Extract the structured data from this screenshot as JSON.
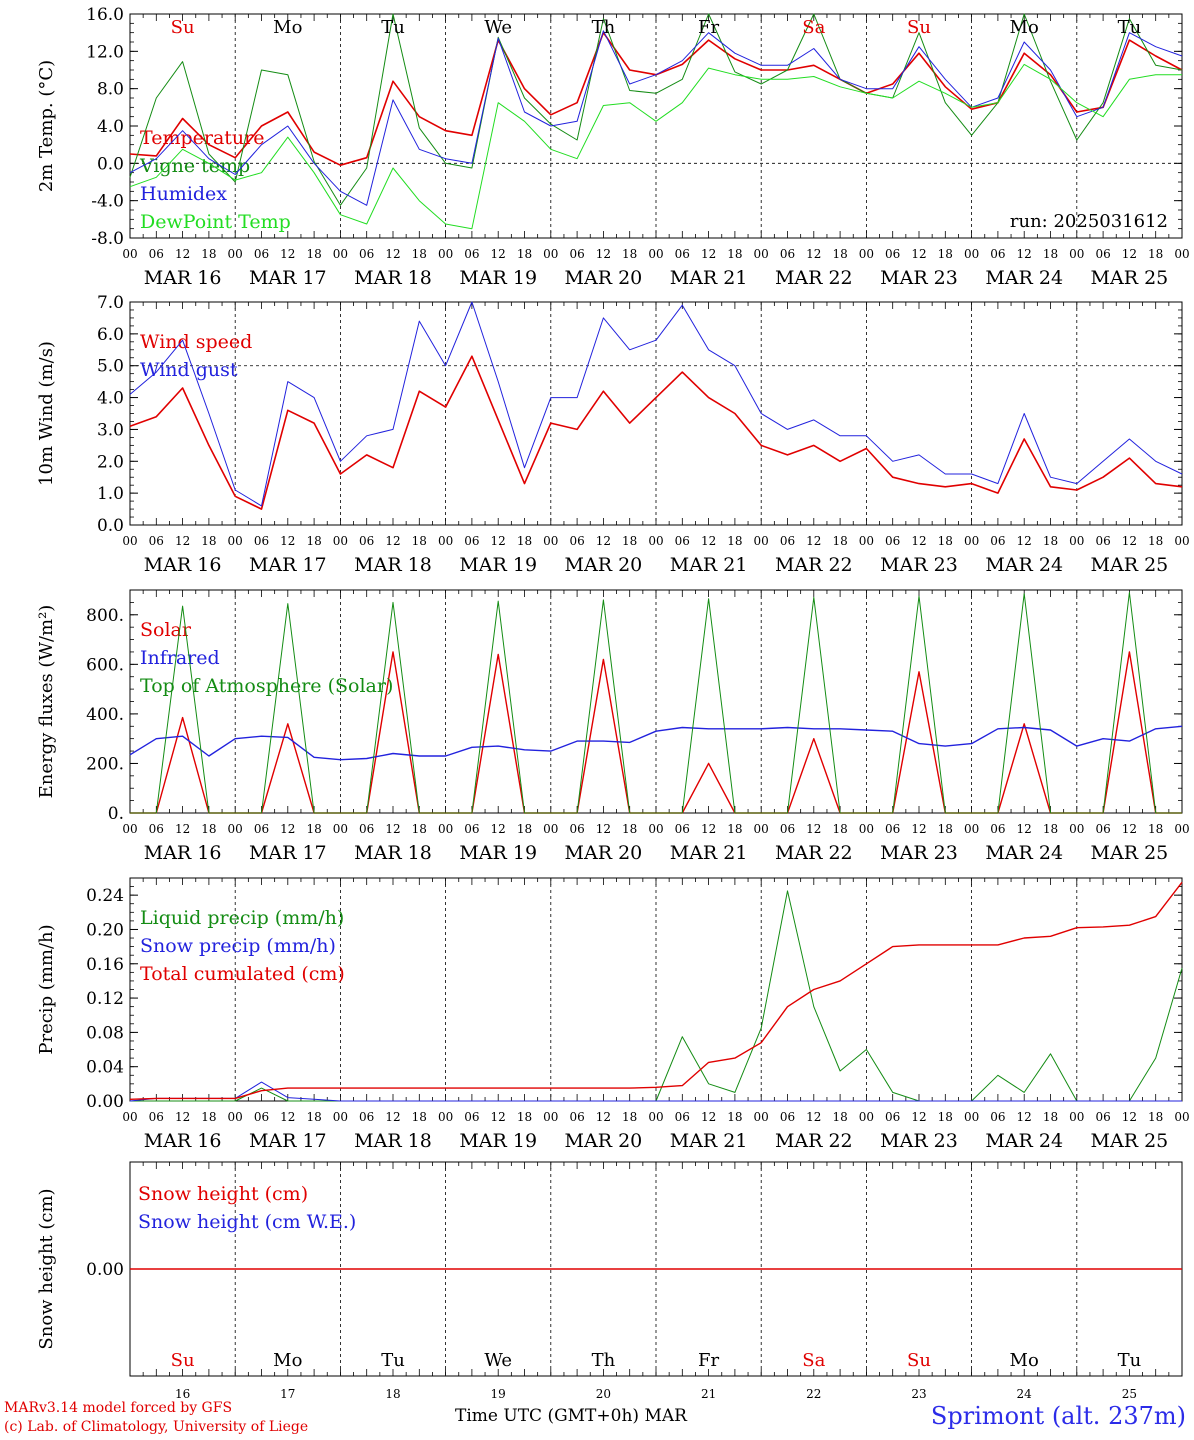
{
  "days": [
    "Su",
    "Mo",
    "Tu",
    "We",
    "Th",
    "Fr",
    "Sa",
    "Su",
    "Mo",
    "Tu"
  ],
  "dayColors": [
    "#e00000",
    "#000000",
    "#000000",
    "#000000",
    "#000000",
    "#000000",
    "#e00000",
    "#e00000",
    "#000000",
    "#000000"
  ],
  "dates": [
    "MAR 16",
    "MAR 17",
    "MAR 18",
    "MAR 19",
    "MAR 20",
    "MAR 21",
    "MAR 22",
    "MAR 23",
    "MAR 24",
    "MAR 25"
  ],
  "dayNumbers": [
    "16",
    "17",
    "18",
    "19",
    "20",
    "21",
    "22",
    "23",
    "24",
    "25"
  ],
  "hourTicks": [
    "00",
    "06",
    "12",
    "18"
  ],
  "lastTick": "00",
  "run_label": "run: 2025031612",
  "footer": {
    "model": "MARv3.14 model forced by GFS",
    "lab": "(c) Lab. of Climatology, University of Liege",
    "xlabel": "Time UTC (GMT+0h)",
    "month": "MAR",
    "station": "Sprimont (alt. 237m)"
  },
  "colors": {
    "red": "#e00000",
    "blue": "#2222dd",
    "green": "#148c14",
    "lightgreen": "#22dd22"
  },
  "chart_data": [
    {
      "type": "line",
      "ylabel": "2m Temp. (°C)",
      "ylim": [
        -8,
        16
      ],
      "yticks": [
        "16.0",
        "12.0",
        "8.0",
        "4.0",
        "0.0",
        "-4.0",
        "-8.0"
      ],
      "ytick_values": [
        16,
        12,
        8,
        4,
        0,
        -4,
        -8
      ],
      "dashed_y": [
        0
      ],
      "x_hours": [
        0,
        6,
        12,
        18,
        24,
        30,
        36,
        42,
        48,
        54,
        60,
        66,
        72,
        78,
        84,
        90,
        96,
        102,
        108,
        114,
        120,
        126,
        132,
        138,
        144,
        150,
        156,
        162,
        168,
        174,
        180,
        186,
        192,
        198,
        204,
        210,
        216,
        222,
        228,
        234,
        240
      ],
      "series": [
        {
          "name": "Temperature",
          "color": "#e00000",
          "width": 1.6,
          "y": [
            1.0,
            0.8,
            4.8,
            2.0,
            0.6,
            4.0,
            5.5,
            1.2,
            -0.2,
            0.6,
            8.8,
            5.0,
            3.5,
            3.0,
            13.2,
            8.0,
            5.2,
            6.5,
            14.0,
            10.0,
            9.5,
            10.6,
            13.2,
            11.2,
            10.0,
            10.0,
            10.5,
            9.0,
            7.5,
            8.5,
            11.8,
            8.2,
            5.8,
            6.5,
            11.8,
            9.5,
            5.5,
            6.0,
            13.2,
            11.5,
            10.0
          ]
        },
        {
          "name": "Vigne temp",
          "color": "#148c14",
          "width": 1,
          "y": [
            -1.5,
            7.0,
            10.9,
            1.0,
            -2.0,
            10.0,
            9.5,
            0.2,
            -4.5,
            -0.5,
            16.0,
            3.8,
            0.0,
            -0.5,
            13.5,
            7.0,
            4.2,
            2.5,
            15.5,
            7.8,
            7.5,
            9.0,
            16.0,
            9.8,
            8.5,
            10.0,
            16.0,
            9.0,
            7.5,
            7.0,
            14.0,
            6.5,
            3.0,
            6.5,
            16.0,
            8.8,
            2.5,
            6.5,
            15.5,
            10.5,
            10.0
          ]
        },
        {
          "name": "Humidex",
          "color": "#2222dd",
          "width": 1,
          "y": [
            -1.0,
            0.5,
            3.5,
            0.5,
            -1.2,
            2.0,
            4.0,
            0.0,
            -3.0,
            -4.5,
            6.8,
            1.5,
            0.5,
            0.0,
            13.4,
            5.5,
            4.0,
            4.5,
            14.2,
            8.5,
            9.5,
            11.0,
            14.0,
            11.8,
            10.5,
            10.5,
            12.3,
            9.0,
            8.0,
            8.0,
            12.5,
            9.0,
            6.0,
            7.0,
            13.0,
            10.0,
            5.0,
            6.0,
            14.0,
            12.5,
            11.5
          ]
        },
        {
          "name": "DewPoint Temp",
          "color": "#22dd22",
          "width": 1,
          "y": [
            -2.5,
            -1.5,
            1.5,
            0.0,
            -1.8,
            -1.0,
            2.8,
            -1.0,
            -5.5,
            -6.5,
            -0.5,
            -4.0,
            -6.5,
            -7.0,
            6.5,
            4.5,
            1.5,
            0.5,
            6.2,
            6.5,
            4.5,
            6.5,
            10.2,
            9.5,
            9.0,
            9.0,
            9.3,
            8.2,
            7.5,
            7.0,
            8.8,
            7.5,
            6.0,
            6.5,
            10.6,
            9.0,
            6.5,
            5.0,
            9.0,
            9.5,
            9.5
          ]
        }
      ]
    },
    {
      "type": "line",
      "ylabel": "10m Wind (m/s)",
      "ylim": [
        0,
        7
      ],
      "yticks": [
        "7.0",
        "6.0",
        "5.0",
        "4.0",
        "3.0",
        "2.0",
        "1.0",
        "0.0"
      ],
      "ytick_values": [
        7,
        6,
        5,
        4,
        3,
        2,
        1,
        0
      ],
      "dashed_y": [
        5
      ],
      "x_hours": [
        0,
        6,
        12,
        18,
        24,
        30,
        36,
        42,
        48,
        54,
        60,
        66,
        72,
        78,
        84,
        90,
        96,
        102,
        108,
        114,
        120,
        126,
        132,
        138,
        144,
        150,
        156,
        162,
        168,
        174,
        180,
        186,
        192,
        198,
        204,
        210,
        216,
        222,
        228,
        234,
        240
      ],
      "series": [
        {
          "name": "Wind speed",
          "color": "#e00000",
          "width": 1.6,
          "y": [
            3.1,
            3.4,
            4.3,
            2.5,
            0.9,
            0.5,
            3.6,
            3.2,
            1.6,
            2.2,
            1.8,
            4.2,
            3.7,
            5.3,
            3.3,
            1.3,
            3.2,
            3.0,
            4.2,
            3.2,
            4.0,
            4.8,
            4.0,
            3.5,
            2.5,
            2.2,
            2.5,
            2.0,
            2.4,
            1.5,
            1.3,
            1.2,
            1.3,
            1.0,
            2.7,
            1.2,
            1.1,
            1.5,
            2.1,
            1.3,
            1.2
          ]
        },
        {
          "name": "Wind gust",
          "color": "#2222dd",
          "width": 1,
          "y": [
            4.1,
            4.8,
            5.8,
            3.5,
            1.1,
            0.6,
            4.5,
            4.0,
            2.0,
            2.8,
            3.0,
            6.4,
            5.0,
            7.0,
            4.5,
            1.8,
            4.0,
            4.0,
            6.5,
            5.5,
            5.8,
            6.9,
            5.5,
            5.0,
            3.5,
            3.0,
            3.3,
            2.8,
            2.8,
            2.0,
            2.2,
            1.6,
            1.6,
            1.3,
            3.5,
            1.5,
            1.3,
            2.0,
            2.7,
            2.0,
            1.6
          ]
        }
      ]
    },
    {
      "type": "line",
      "ylabel": "Energy fluxes (W/m²)",
      "ylim": [
        0,
        900
      ],
      "yticks": [
        "800.",
        "600.",
        "400.",
        "200.",
        "0."
      ],
      "ytick_values": [
        800,
        600,
        400,
        200,
        0
      ],
      "dashed_y": [],
      "x_hours": [
        0,
        6,
        12,
        18,
        24,
        30,
        36,
        42,
        48,
        54,
        60,
        66,
        72,
        78,
        84,
        90,
        96,
        102,
        108,
        114,
        120,
        126,
        132,
        138,
        144,
        150,
        156,
        162,
        168,
        174,
        180,
        186,
        192,
        198,
        204,
        210,
        216,
        222,
        228,
        234,
        240
      ],
      "series": [
        {
          "name": "Solar",
          "color": "#e00000",
          "width": 1.4,
          "y": [
            0,
            0,
            385,
            0,
            0,
            0,
            360,
            0,
            0,
            0,
            650,
            0,
            0,
            0,
            640,
            0,
            0,
            0,
            620,
            0,
            0,
            0,
            200,
            0,
            0,
            0,
            300,
            0,
            0,
            0,
            570,
            0,
            0,
            0,
            360,
            0,
            0,
            0,
            650,
            0,
            0
          ]
        },
        {
          "name": "Infrared",
          "color": "#2222dd",
          "width": 1.4,
          "y": [
            235,
            300,
            310,
            230,
            300,
            310,
            305,
            225,
            215,
            220,
            240,
            230,
            230,
            265,
            270,
            255,
            250,
            290,
            290,
            285,
            330,
            345,
            340,
            340,
            340,
            345,
            340,
            340,
            335,
            330,
            280,
            270,
            280,
            340,
            345,
            335,
            270,
            300,
            290,
            340,
            350
          ]
        },
        {
          "name": "Top of Atmosphere (Solar)",
          "color": "#148c14",
          "width": 1,
          "y": [
            0,
            0,
            835,
            0,
            0,
            0,
            845,
            0,
            0,
            0,
            850,
            0,
            0,
            0,
            855,
            0,
            0,
            0,
            860,
            0,
            0,
            0,
            865,
            0,
            0,
            0,
            870,
            0,
            0,
            0,
            875,
            0,
            0,
            0,
            885,
            0,
            0,
            0,
            890,
            0,
            0
          ]
        }
      ]
    },
    {
      "type": "line",
      "ylabel": "Precip (mm/h)",
      "ylim": [
        0,
        0.26
      ],
      "yticks": [
        "0.24",
        "0.20",
        "0.16",
        "0.12",
        "0.08",
        "0.04",
        "0.00"
      ],
      "ytick_values": [
        0.24,
        0.2,
        0.16,
        0.12,
        0.08,
        0.04,
        0
      ],
      "dashed_y": [],
      "x_hours": [
        0,
        6,
        12,
        18,
        24,
        30,
        36,
        42,
        48,
        54,
        60,
        66,
        72,
        78,
        84,
        90,
        96,
        102,
        108,
        114,
        120,
        126,
        132,
        138,
        144,
        150,
        156,
        162,
        168,
        174,
        180,
        186,
        192,
        198,
        204,
        210,
        216,
        222,
        228,
        234,
        240
      ],
      "series": [
        {
          "name": "Liquid precip (mm/h)",
          "color": "#148c14",
          "width": 1,
          "y": [
            0,
            0,
            0,
            0,
            0,
            0.015,
            0,
            0,
            0,
            0,
            0,
            0,
            0,
            0,
            0,
            0,
            0,
            0,
            0,
            0,
            0,
            0.075,
            0.02,
            0.01,
            0.085,
            0.245,
            0.11,
            0.035,
            0.06,
            0.01,
            0,
            0,
            0,
            0.03,
            0.01,
            0.055,
            0,
            0,
            0,
            0.05,
            0.155
          ]
        },
        {
          "name": "Snow precip (mm/h)",
          "color": "#2222dd",
          "width": 1,
          "y": [
            0,
            0.003,
            0.003,
            0.003,
            0.003,
            0.022,
            0.004,
            0.002,
            0,
            0,
            0,
            0,
            0,
            0,
            0,
            0,
            0,
            0,
            0,
            0,
            0,
            0,
            0,
            0,
            0,
            0,
            0,
            0,
            0,
            0,
            0,
            0,
            0,
            0,
            0,
            0,
            0,
            0,
            0,
            0,
            0
          ]
        },
        {
          "name": "Total cumulated (cm)",
          "color": "#e00000",
          "width": 1.4,
          "y": [
            0.002,
            0.003,
            0.003,
            0.003,
            0.003,
            0.012,
            0.015,
            0.015,
            0.015,
            0.015,
            0.015,
            0.015,
            0.015,
            0.015,
            0.015,
            0.015,
            0.015,
            0.015,
            0.015,
            0.015,
            0.016,
            0.018,
            0.045,
            0.05,
            0.068,
            0.11,
            0.13,
            0.14,
            0.16,
            0.18,
            0.182,
            0.182,
            0.182,
            0.182,
            0.19,
            0.192,
            0.202,
            0.203,
            0.205,
            0.215,
            0.255
          ]
        }
      ]
    },
    {
      "type": "line",
      "ylabel": "Snow height (cm)",
      "ylim": [
        -1,
        1
      ],
      "yticks": [
        "0.00"
      ],
      "ytick_values": [
        0
      ],
      "dashed_y": [],
      "x_hours": [
        0,
        240
      ],
      "series": [
        {
          "name": "Snow height (cm)",
          "color": "#e00000",
          "width": 1.4,
          "y": [
            0,
            0
          ]
        },
        {
          "name": "Snow height (cm W.E.)",
          "color": "#2222dd",
          "width": 1,
          "y": [
            null,
            null
          ]
        }
      ]
    }
  ]
}
